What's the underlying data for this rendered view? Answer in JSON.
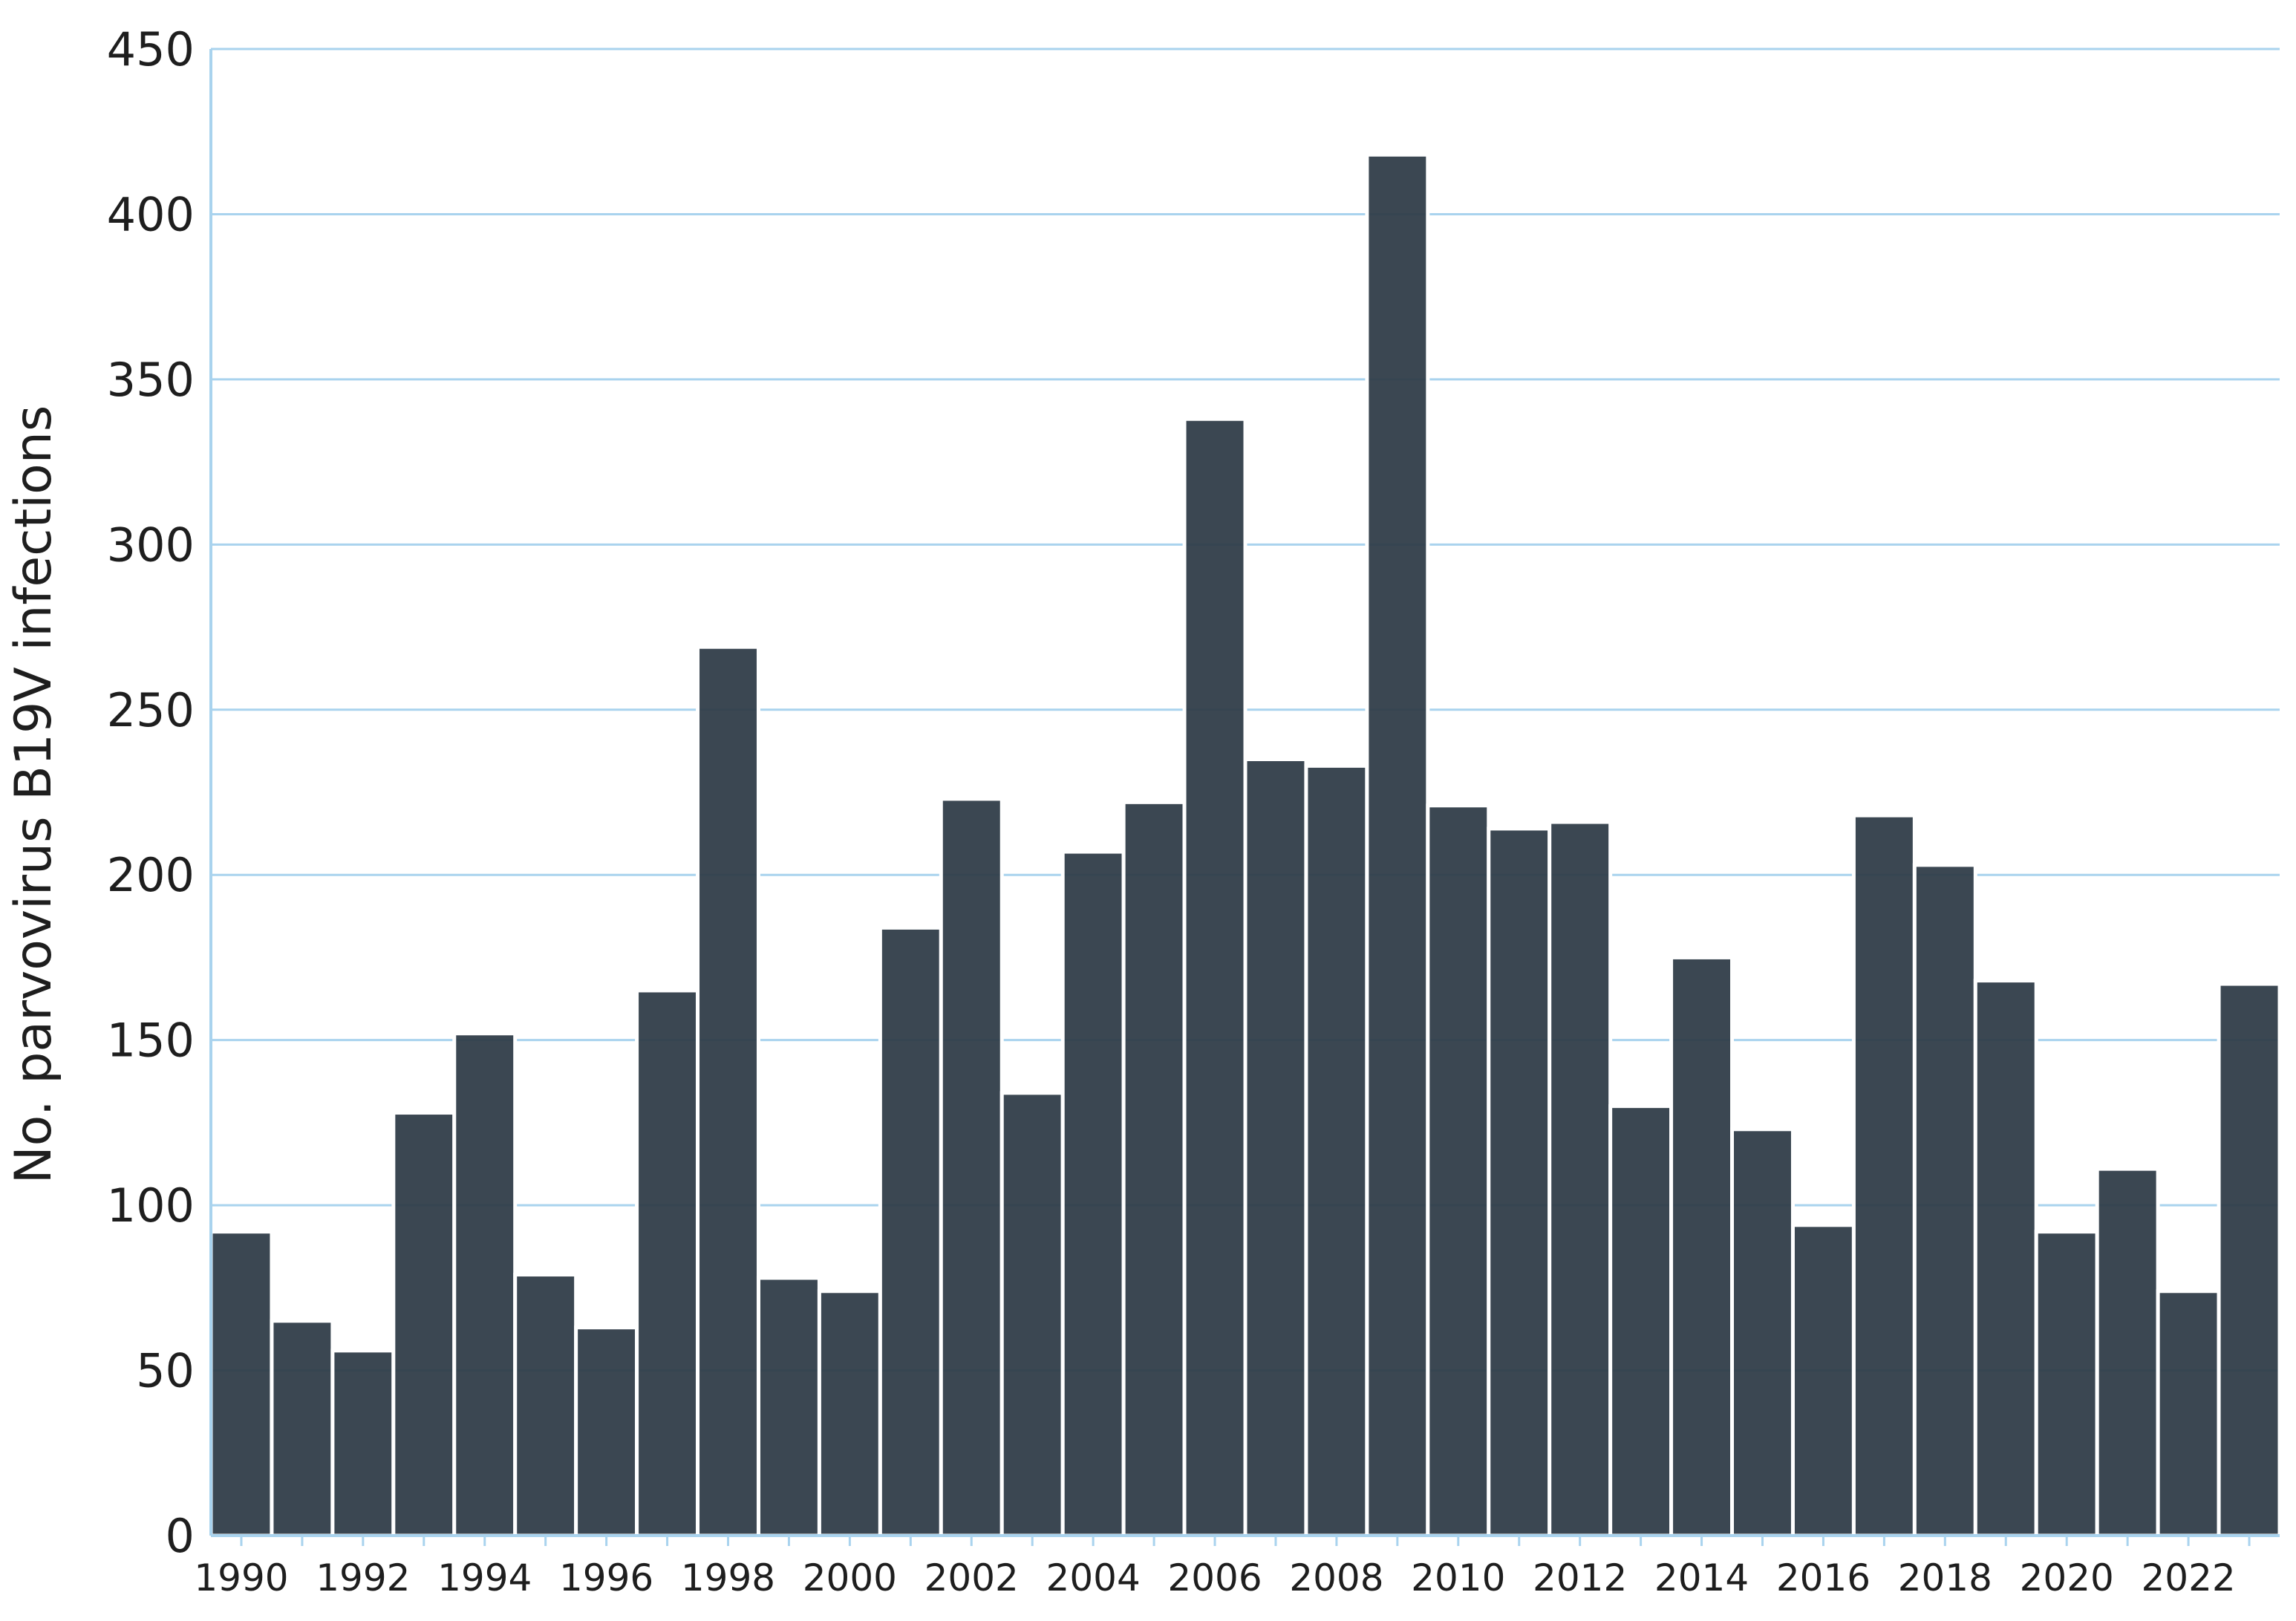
{
  "chart_data": {
    "type": "bar",
    "title": "",
    "xlabel": "",
    "ylabel": "No. parvovirus B19V infections",
    "ylim": [
      0,
      450
    ],
    "yticks": [
      0,
      50,
      100,
      150,
      200,
      250,
      300,
      350,
      400,
      450
    ],
    "grid": "horizontal",
    "legend": "none",
    "bar_color": "#2f3c47",
    "grid_color": "#a9d3ee",
    "categories": [
      "1990",
      "1991",
      "1992",
      "1993",
      "1994",
      "1995",
      "1996",
      "1997",
      "1998",
      "1999",
      "2000",
      "2001",
      "2002",
      "2003",
      "2004",
      "2005",
      "2006",
      "2007",
      "2008",
      "2009",
      "2010",
      "2011",
      "2012",
      "2013",
      "2014",
      "2015",
      "2016",
      "2017",
      "2018",
      "2019",
      "2020",
      "2021",
      "2022",
      "2023"
    ],
    "xtick_labels": [
      "1990",
      "1992",
      "1994",
      "1996",
      "1998",
      "2000",
      "2002",
      "2004",
      "2006",
      "2008",
      "2010",
      "2012",
      "2014",
      "2016",
      "2018",
      "2020",
      "2022"
    ],
    "values": [
      92,
      65,
      56,
      128,
      152,
      79,
      63,
      165,
      269,
      78,
      74,
      184,
      223,
      134,
      207,
      222,
      338,
      235,
      233,
      418,
      221,
      214,
      216,
      130,
      175,
      123,
      94,
      218,
      203,
      168,
      92,
      111,
      74,
      167
    ]
  }
}
